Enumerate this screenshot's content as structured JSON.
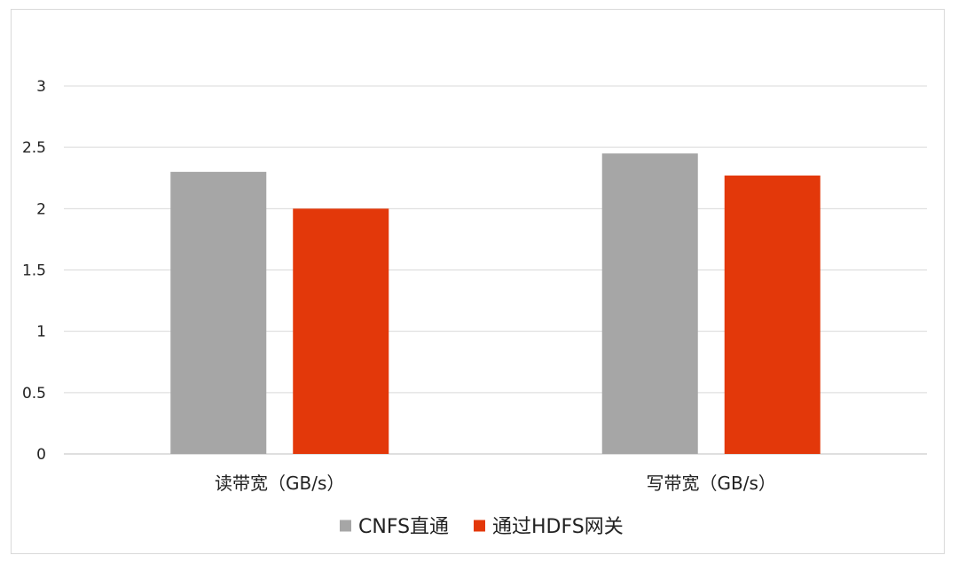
{
  "chart_data": {
    "type": "bar",
    "categories": [
      "读带宽（GB/s）",
      "写带宽（GB/s）"
    ],
    "series": [
      {
        "name": "CNFS直通",
        "values": [
          2.3,
          2.45
        ],
        "color": "#a6a6a6"
      },
      {
        "name": "通过HDFS网关",
        "values": [
          2.0,
          2.27
        ],
        "color": "#e3380a"
      }
    ],
    "ylim": [
      0,
      3
    ],
    "yticks": [
      "0",
      "0.5",
      "1",
      "1.5",
      "2",
      "2.5",
      "3"
    ],
    "grid": true,
    "legend_position": "bottom"
  }
}
